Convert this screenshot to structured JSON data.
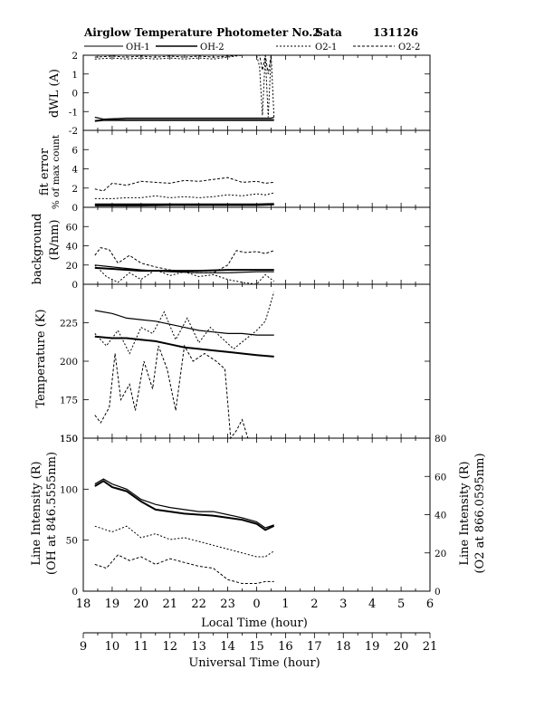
{
  "title": {
    "text": "Airglow Temperature Photometer No.2",
    "station": "Sata",
    "date": "131126"
  },
  "legend": {
    "labels": [
      "OH-1",
      "OH-2",
      "O2-1",
      "O2-2"
    ]
  },
  "x_axes": {
    "local": {
      "label": "Local Time (hour)",
      "ticks": [
        "18",
        "19",
        "20",
        "21",
        "22",
        "23",
        "0",
        "1",
        "2",
        "3",
        "4",
        "5",
        "6"
      ]
    },
    "ut": {
      "label": "Universal Time (hour)",
      "ticks": [
        "9",
        "10",
        "11",
        "12",
        "13",
        "14",
        "15",
        "16",
        "17",
        "18",
        "19",
        "20",
        "21"
      ]
    }
  },
  "panels": {
    "dwl": {
      "label": "dWL (A)",
      "ticks": [
        "-2",
        "-1",
        "0",
        "1",
        "2"
      ]
    },
    "fit": {
      "label1": "fit error",
      "label2": "% of max count",
      "ticks": [
        "0",
        "2",
        "4",
        "6"
      ]
    },
    "bg": {
      "label1": "background",
      "label2": "(R/nm)",
      "ticks": [
        "0",
        "20",
        "40",
        "60"
      ]
    },
    "temp": {
      "label": "Temperature (K)",
      "ticks": [
        "150",
        "175",
        "200",
        "225"
      ]
    },
    "int": {
      "label1": "Line Intensity (R)",
      "label2": "(OH at 846.5555nm)",
      "rlabel1": "Line Intensity (R)",
      "rlabel2": "(O2 at 866.0595nm)",
      "ticks": [
        "0",
        "50",
        "100",
        "150"
      ],
      "rticks": [
        "0",
        "20",
        "40",
        "60",
        "80"
      ]
    }
  },
  "chart_data": [
    {
      "type": "line",
      "name": "dWL",
      "x_unit": "local hour (24+ after midnight)",
      "xlim": [
        18,
        30
      ],
      "ylim": [
        -2,
        2
      ],
      "series": [
        {
          "name": "OH-1",
          "x": [
            18.4,
            18.7,
            19.5,
            20.5,
            21.5,
            22.5,
            23.5,
            24.2,
            24.5,
            24.6
          ],
          "y": [
            -1.3,
            -1.4,
            -1.35,
            -1.35,
            -1.35,
            -1.35,
            -1.35,
            -1.35,
            -1.35,
            -1.3
          ]
        },
        {
          "name": "OH-2",
          "x": [
            18.4,
            18.7,
            19.5,
            20.5,
            21.5,
            22.5,
            23.5,
            24.2,
            24.5,
            24.6
          ],
          "y": [
            -1.5,
            -1.45,
            -1.45,
            -1.45,
            -1.45,
            -1.45,
            -1.45,
            -1.45,
            -1.45,
            -1.45
          ]
        },
        {
          "name": "O2-1",
          "x": [
            18.4,
            19,
            19.5,
            20,
            20.5,
            21,
            21.5,
            22,
            22.5,
            23,
            23.5,
            24,
            24.1,
            24.2,
            24.3,
            24.4,
            24.5,
            24.6
          ],
          "y": [
            1.8,
            1.85,
            1.8,
            1.85,
            1.8,
            1.85,
            1.8,
            1.85,
            1.8,
            1.9,
            2.0,
            2.0,
            1.4,
            -1.2,
            2.0,
            -1.3,
            2.0,
            -1.3
          ]
        },
        {
          "name": "O2-2",
          "x": [
            18.4,
            19,
            19.5,
            20,
            20.5,
            21,
            21.5,
            22,
            22.5,
            23,
            23.5,
            24,
            24.1,
            24.2,
            24.3,
            24.4,
            24.5,
            24.6
          ],
          "y": [
            1.9,
            1.95,
            1.9,
            1.95,
            1.9,
            1.95,
            1.9,
            1.95,
            1.9,
            1.95,
            2.0,
            2.0,
            2.0,
            1.2,
            2.0,
            1.0,
            2.0,
            2.0
          ]
        }
      ]
    },
    {
      "type": "line",
      "name": "fit error",
      "x_unit": "local hour",
      "xlim": [
        18,
        30
      ],
      "ylim": [
        0,
        8
      ],
      "series": [
        {
          "name": "OH-1",
          "x": [
            18.4,
            19,
            20,
            21,
            22,
            23,
            24,
            24.6
          ],
          "y": [
            0.15,
            0.15,
            0.15,
            0.2,
            0.2,
            0.2,
            0.2,
            0.25
          ]
        },
        {
          "name": "OH-2",
          "x": [
            18.4,
            19,
            20,
            21,
            22,
            23,
            24,
            24.6
          ],
          "y": [
            0.3,
            0.3,
            0.3,
            0.3,
            0.3,
            0.3,
            0.3,
            0.35
          ]
        },
        {
          "name": "O2-1",
          "x": [
            18.4,
            19,
            19.5,
            20,
            20.5,
            21,
            21.5,
            22,
            22.5,
            23,
            23.5,
            24,
            24.3,
            24.6
          ],
          "y": [
            0.9,
            0.9,
            1.0,
            1.0,
            1.2,
            1.0,
            1.1,
            1.0,
            1.1,
            1.3,
            1.2,
            1.4,
            1.3,
            1.5
          ]
        },
        {
          "name": "O2-2",
          "x": [
            18.4,
            18.7,
            19,
            19.5,
            20,
            20.5,
            21,
            21.5,
            22,
            22.5,
            23,
            23.5,
            24,
            24.3,
            24.6
          ],
          "y": [
            1.9,
            1.7,
            2.5,
            2.3,
            2.7,
            2.6,
            2.5,
            2.8,
            2.7,
            2.9,
            3.1,
            2.6,
            2.7,
            2.5,
            2.6
          ]
        }
      ]
    },
    {
      "type": "line",
      "name": "background",
      "x_unit": "local hour",
      "xlim": [
        18,
        30
      ],
      "ylim": [
        0,
        80
      ],
      "series": [
        {
          "name": "OH-1",
          "x": [
            18.4,
            19,
            20,
            21,
            22,
            23,
            24,
            24.6
          ],
          "y": [
            20,
            18,
            15,
            13,
            12,
            12,
            13,
            13
          ]
        },
        {
          "name": "OH-2",
          "x": [
            18.4,
            19,
            20,
            21,
            22,
            23,
            24,
            24.6
          ],
          "y": [
            17,
            16,
            14,
            14,
            14,
            15,
            15,
            15
          ]
        },
        {
          "name": "O2-1",
          "x": [
            18.4,
            18.8,
            19.2,
            19.6,
            20,
            20.5,
            21,
            21.5,
            22,
            22.5,
            23,
            23.5,
            24,
            24.3,
            24.6
          ],
          "y": [
            20,
            8,
            2,
            12,
            5,
            15,
            9,
            13,
            8,
            10,
            5,
            2,
            0,
            10,
            3
          ]
        },
        {
          "name": "O2-2",
          "x": [
            18.4,
            18.6,
            18.9,
            19.2,
            19.6,
            20,
            20.5,
            21,
            21.5,
            22,
            22.5,
            23,
            23.3,
            23.6,
            24,
            24.3,
            24.6
          ],
          "y": [
            30,
            38,
            36,
            22,
            30,
            22,
            18,
            15,
            13,
            12,
            12,
            20,
            35,
            33,
            34,
            32,
            35
          ]
        }
      ]
    },
    {
      "type": "line",
      "name": "temperature",
      "x_unit": "local hour",
      "xlim": [
        18,
        30
      ],
      "ylim": [
        150,
        250
      ],
      "series": [
        {
          "name": "OH-1",
          "x": [
            18.4,
            19,
            19.5,
            20,
            20.5,
            21,
            21.5,
            22,
            22.5,
            23,
            23.5,
            24,
            24.6
          ],
          "y": [
            233,
            231,
            228,
            227,
            226,
            224,
            222,
            220,
            219,
            218,
            218,
            217,
            217
          ]
        },
        {
          "name": "OH-2",
          "x": [
            18.4,
            19,
            19.5,
            20,
            20.5,
            21,
            21.5,
            22,
            22.5,
            23,
            23.5,
            24,
            24.6
          ],
          "y": [
            216,
            215,
            215,
            214,
            213,
            211,
            209,
            208,
            207,
            206,
            205,
            204,
            203
          ]
        },
        {
          "name": "O2-1",
          "x": [
            18.4,
            18.8,
            19.2,
            19.6,
            20,
            20.4,
            20.8,
            21.2,
            21.6,
            22,
            22.4,
            22.8,
            23.2,
            23.6,
            24,
            24.3,
            24.6
          ],
          "y": [
            218,
            210,
            220,
            205,
            222,
            218,
            232,
            214,
            228,
            212,
            222,
            215,
            208,
            214,
            220,
            226,
            245
          ]
        },
        {
          "name": "O2-2",
          "x": [
            18.4,
            18.6,
            18.9,
            19.1,
            19.3,
            19.6,
            19.8,
            20.1,
            20.4,
            20.6,
            20.9,
            21.2,
            21.5,
            21.8,
            22.2,
            22.6,
            22.9,
            23.0,
            23.1,
            23.3,
            23.5,
            23.7,
            24,
            24.6
          ],
          "y": [
            165,
            160,
            170,
            205,
            175,
            185,
            168,
            200,
            182,
            210,
            195,
            168,
            210,
            200,
            205,
            200,
            195,
            173,
            150,
            155,
            162,
            150,
            150,
            150
          ]
        }
      ]
    },
    {
      "type": "line",
      "name": "line intensity",
      "x_unit": "local hour",
      "xlim": [
        18,
        30
      ],
      "ylim": [
        0,
        150
      ],
      "ylim_right": [
        0,
        80
      ],
      "series": [
        {
          "name": "OH-1",
          "axis": "left",
          "x": [
            18.4,
            18.7,
            19,
            19.5,
            20,
            20.5,
            21,
            21.5,
            22,
            22.5,
            23,
            23.5,
            24,
            24.3,
            24.6
          ],
          "y": [
            105,
            110,
            105,
            100,
            90,
            85,
            82,
            80,
            78,
            78,
            75,
            72,
            68,
            62,
            65
          ]
        },
        {
          "name": "OH-2",
          "axis": "left",
          "x": [
            18.4,
            18.7,
            19,
            19.5,
            20,
            20.5,
            21,
            21.5,
            22,
            22.5,
            23,
            23.5,
            24,
            24.3,
            24.6
          ],
          "y": [
            103,
            108,
            102,
            98,
            88,
            80,
            78,
            76,
            75,
            74,
            72,
            70,
            66,
            60,
            64
          ]
        },
        {
          "name": "O2-1",
          "axis": "right",
          "x": [
            18.4,
            19,
            19.5,
            20,
            20.5,
            21,
            21.5,
            22,
            22.5,
            23,
            23.5,
            24,
            24.3,
            24.6
          ],
          "y": [
            34,
            31,
            34,
            28,
            30,
            27,
            28,
            26,
            24,
            22,
            20,
            18,
            18,
            21
          ]
        },
        {
          "name": "O2-2",
          "axis": "right",
          "x": [
            18.4,
            18.8,
            19.2,
            19.6,
            20,
            20.5,
            21,
            21.5,
            22,
            22.5,
            23,
            23.5,
            24,
            24.3,
            24.6
          ],
          "y": [
            14,
            12,
            19,
            16,
            18,
            14,
            17,
            15,
            13,
            12,
            6,
            4,
            4,
            5,
            5
          ]
        }
      ]
    }
  ]
}
